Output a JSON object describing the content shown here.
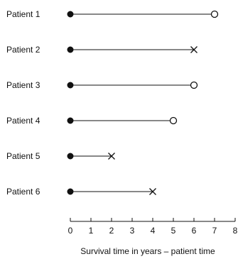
{
  "chart_data": {
    "type": "line",
    "xlabel": "Survival time in years – patient time",
    "xlim": [
      0,
      8
    ],
    "xticks": [
      0,
      1,
      2,
      3,
      4,
      5,
      6,
      7,
      8
    ],
    "grid": false,
    "series": [
      {
        "name": "Patient 1",
        "start": 0,
        "end": 7,
        "outcome": "censored"
      },
      {
        "name": "Patient 2",
        "start": 0,
        "end": 6,
        "outcome": "event"
      },
      {
        "name": "Patient 3",
        "start": 0,
        "end": 6,
        "outcome": "censored"
      },
      {
        "name": "Patient 4",
        "start": 0,
        "end": 5,
        "outcome": "censored"
      },
      {
        "name": "Patient 5",
        "start": 0,
        "end": 2,
        "outcome": "event"
      },
      {
        "name": "Patient 6",
        "start": 0,
        "end": 4,
        "outcome": "event"
      }
    ],
    "markers": {
      "start": "filled-circle",
      "censored": "open-circle",
      "event": "cross"
    },
    "colors": {
      "ink": "#111111",
      "background": "#ffffff"
    }
  }
}
